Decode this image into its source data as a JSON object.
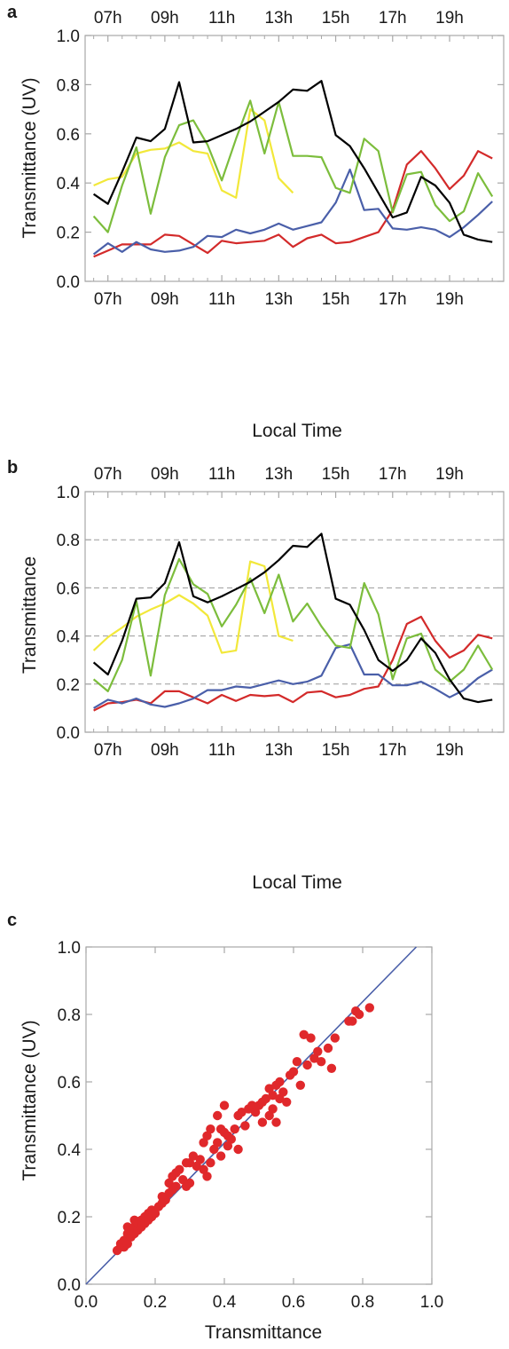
{
  "colors": {
    "black": "#000000",
    "green": "#7cbd3c",
    "yellow": "#f2e83a",
    "red": "#d32a2a",
    "blue": "#4a5fa9",
    "points": "#e0282b",
    "diagonal": "#4a5fa9",
    "grid": "#9a9a9a",
    "frame": "#a8a8a8"
  },
  "chart_data": [
    {
      "type": "line",
      "panel_label": "a",
      "xlabel": "Local Time",
      "ylabel": "Transmittance (UV)",
      "xlim": [
        6.2,
        20.9
      ],
      "ylim": [
        0,
        1.0
      ],
      "x_ticks": [
        7,
        9,
        11,
        13,
        15,
        17,
        19
      ],
      "x_tick_labels": [
        "07h",
        "09h",
        "11h",
        "13h",
        "15h",
        "17h",
        "19h"
      ],
      "y_ticks": [
        0,
        0.2,
        0.4,
        0.6,
        0.8,
        1.0
      ],
      "y_tick_labels": [
        "0.0",
        "0.2",
        "0.4",
        "0.6",
        "0.8",
        "1.0"
      ],
      "top_tick_labels": true,
      "grid": false,
      "series": [
        {
          "color": "black",
          "x": [
            6.5,
            7,
            7.5,
            8,
            8.5,
            9,
            9.5,
            10,
            10.5,
            11,
            11.5,
            12,
            12.5,
            13,
            13.5,
            14,
            14.5,
            15,
            15.5,
            16,
            16.5,
            17,
            17.5,
            18,
            18.5,
            19,
            19.5,
            20,
            20.5
          ],
          "y": [
            0.355,
            0.315,
            0.445,
            0.585,
            0.57,
            0.62,
            0.81,
            0.565,
            0.57,
            0.595,
            0.62,
            0.65,
            0.69,
            0.73,
            0.78,
            0.775,
            0.815,
            0.595,
            0.55,
            0.46,
            0.36,
            0.26,
            0.28,
            0.425,
            0.39,
            0.32,
            0.19,
            0.17,
            0.16
          ]
        },
        {
          "color": "green",
          "x": [
            6.5,
            7,
            7.5,
            8,
            8.5,
            9,
            9.5,
            10,
            10.5,
            11,
            11.5,
            12,
            12.5,
            13,
            13.5,
            14,
            14.5,
            15,
            15.5,
            16,
            16.5,
            17,
            17.5,
            18,
            18.5,
            19,
            19.5,
            20,
            20.5
          ],
          "y": [
            0.265,
            0.2,
            0.39,
            0.545,
            0.275,
            0.505,
            0.635,
            0.655,
            0.555,
            0.41,
            0.58,
            0.735,
            0.52,
            0.73,
            0.51,
            0.51,
            0.505,
            0.38,
            0.36,
            0.58,
            0.53,
            0.28,
            0.435,
            0.445,
            0.31,
            0.245,
            0.285,
            0.44,
            0.345
          ]
        },
        {
          "color": "yellow",
          "x": [
            6.5,
            7,
            7.5,
            8,
            8.5,
            9,
            9.5,
            10,
            10.5,
            11,
            11.5,
            12,
            12.5,
            13,
            13.5
          ],
          "y": [
            0.39,
            0.415,
            0.425,
            0.52,
            0.535,
            0.54,
            0.565,
            0.53,
            0.52,
            0.37,
            0.34,
            0.7,
            0.655,
            0.42,
            0.36
          ]
        },
        {
          "color": "red",
          "x": [
            6.5,
            7,
            7.5,
            8,
            8.5,
            9,
            9.5,
            10,
            10.5,
            11,
            11.5,
            12,
            12.5,
            13,
            13.5,
            14,
            14.5,
            15,
            15.5,
            16,
            16.5,
            17,
            17.5,
            18,
            18.5,
            19,
            19.5,
            20,
            20.5
          ],
          "y": [
            0.1,
            0.125,
            0.15,
            0.15,
            0.15,
            0.19,
            0.185,
            0.15,
            0.115,
            0.165,
            0.155,
            0.16,
            0.165,
            0.19,
            0.14,
            0.175,
            0.19,
            0.155,
            0.16,
            0.18,
            0.2,
            0.29,
            0.475,
            0.53,
            0.46,
            0.375,
            0.43,
            0.53,
            0.5
          ]
        },
        {
          "color": "blue",
          "x": [
            6.5,
            7,
            7.5,
            8,
            8.5,
            9,
            9.5,
            10,
            10.5,
            11,
            11.5,
            12,
            12.5,
            13,
            13.5,
            14,
            14.5,
            15,
            15.5,
            16,
            16.5,
            17,
            17.5,
            18,
            18.5,
            19,
            19.5,
            20,
            20.5
          ],
          "y": [
            0.11,
            0.155,
            0.12,
            0.16,
            0.13,
            0.12,
            0.125,
            0.14,
            0.185,
            0.18,
            0.21,
            0.195,
            0.21,
            0.235,
            0.21,
            0.225,
            0.24,
            0.32,
            0.455,
            0.29,
            0.295,
            0.215,
            0.21,
            0.22,
            0.21,
            0.18,
            0.22,
            0.27,
            0.325
          ]
        }
      ]
    },
    {
      "type": "line",
      "panel_label": "b",
      "xlabel": "Local Time",
      "ylabel": "Transmittance",
      "xlim": [
        6.2,
        20.9
      ],
      "ylim": [
        0,
        1.0
      ],
      "x_ticks": [
        7,
        9,
        11,
        13,
        15,
        17,
        19
      ],
      "x_tick_labels": [
        "07h",
        "09h",
        "11h",
        "13h",
        "15h",
        "17h",
        "19h"
      ],
      "y_ticks": [
        0,
        0.2,
        0.4,
        0.6,
        0.8,
        1.0
      ],
      "y_tick_labels": [
        "0.0",
        "0.2",
        "0.4",
        "0.6",
        "0.8",
        "1.0"
      ],
      "top_tick_labels": true,
      "grid": "dashed horizontal at 0.2, 0.4, 0.6, 0.8",
      "gridlines": [
        0.2,
        0.4,
        0.6,
        0.8
      ],
      "series": [
        {
          "color": "black",
          "x": [
            6.5,
            7,
            7.5,
            8,
            8.5,
            9,
            9.5,
            10,
            10.5,
            11,
            11.5,
            12,
            12.5,
            13,
            13.5,
            14,
            14.5,
            15,
            15.5,
            16,
            16.5,
            17,
            17.5,
            18,
            18.5,
            19,
            19.5,
            20,
            20.5
          ],
          "y": [
            0.29,
            0.24,
            0.38,
            0.555,
            0.56,
            0.62,
            0.79,
            0.565,
            0.54,
            0.565,
            0.595,
            0.625,
            0.665,
            0.715,
            0.775,
            0.77,
            0.825,
            0.555,
            0.53,
            0.425,
            0.3,
            0.255,
            0.3,
            0.39,
            0.33,
            0.22,
            0.14,
            0.125,
            0.135
          ]
        },
        {
          "color": "green",
          "x": [
            6.5,
            7,
            7.5,
            8,
            8.5,
            9,
            9.5,
            10,
            10.5,
            11,
            11.5,
            12,
            12.5,
            13,
            13.5,
            14,
            14.5,
            15,
            15.5,
            16,
            16.5,
            17,
            17.5,
            18,
            18.5,
            19,
            19.5,
            20,
            20.5
          ],
          "y": [
            0.22,
            0.17,
            0.3,
            0.545,
            0.235,
            0.57,
            0.72,
            0.615,
            0.575,
            0.44,
            0.53,
            0.64,
            0.495,
            0.655,
            0.46,
            0.535,
            0.44,
            0.36,
            0.35,
            0.62,
            0.49,
            0.22,
            0.39,
            0.41,
            0.26,
            0.21,
            0.26,
            0.36,
            0.26
          ]
        },
        {
          "color": "yellow",
          "x": [
            6.5,
            7,
            7.5,
            8,
            8.5,
            9,
            9.5,
            10,
            10.5,
            11,
            11.5,
            12,
            12.5,
            13,
            13.5
          ],
          "y": [
            0.34,
            0.395,
            0.435,
            0.48,
            0.51,
            0.535,
            0.57,
            0.535,
            0.485,
            0.33,
            0.34,
            0.71,
            0.69,
            0.4,
            0.38
          ]
        },
        {
          "color": "red",
          "x": [
            6.5,
            7,
            7.5,
            8,
            8.5,
            9,
            9.5,
            10,
            10.5,
            11,
            11.5,
            12,
            12.5,
            13,
            13.5,
            14,
            14.5,
            15,
            15.5,
            16,
            16.5,
            17,
            17.5,
            18,
            18.5,
            19,
            19.5,
            20,
            20.5
          ],
          "y": [
            0.09,
            0.12,
            0.125,
            0.135,
            0.12,
            0.17,
            0.17,
            0.145,
            0.12,
            0.155,
            0.13,
            0.155,
            0.15,
            0.155,
            0.125,
            0.165,
            0.17,
            0.145,
            0.155,
            0.18,
            0.19,
            0.3,
            0.45,
            0.48,
            0.38,
            0.31,
            0.34,
            0.405,
            0.39
          ]
        },
        {
          "color": "blue",
          "x": [
            6.5,
            7,
            7.5,
            8,
            8.5,
            9,
            9.5,
            10,
            10.5,
            11,
            11.5,
            12,
            12.5,
            13,
            13.5,
            14,
            14.5,
            15,
            15.5,
            16,
            16.5,
            17,
            17.5,
            18,
            18.5,
            19,
            19.5,
            20,
            20.5
          ],
          "y": [
            0.1,
            0.135,
            0.12,
            0.14,
            0.115,
            0.105,
            0.12,
            0.14,
            0.175,
            0.175,
            0.19,
            0.185,
            0.2,
            0.215,
            0.2,
            0.21,
            0.235,
            0.35,
            0.365,
            0.24,
            0.24,
            0.195,
            0.195,
            0.21,
            0.18,
            0.145,
            0.175,
            0.225,
            0.26
          ]
        }
      ]
    },
    {
      "type": "scatter",
      "panel_label": "c",
      "xlabel": "Transmittance",
      "ylabel": "Transmittance (UV)",
      "xlim": [
        0,
        1.0
      ],
      "ylim": [
        0,
        1.0
      ],
      "x_ticks": [
        0,
        0.2,
        0.4,
        0.6,
        0.8,
        1.0
      ],
      "x_tick_labels": [
        "0.0",
        "0.2",
        "0.4",
        "0.6",
        "0.8",
        "1.0"
      ],
      "y_ticks": [
        0,
        0.2,
        0.4,
        0.6,
        0.8,
        1.0
      ],
      "y_tick_labels": [
        "0.0",
        "0.2",
        "0.4",
        "0.6",
        "0.8",
        "1.0"
      ],
      "grid": false,
      "reference_line": {
        "x": [
          0,
          0.955
        ],
        "y": [
          0,
          1.0
        ]
      },
      "points": [
        [
          0.09,
          0.1
        ],
        [
          0.1,
          0.11
        ],
        [
          0.1,
          0.12
        ],
        [
          0.11,
          0.11
        ],
        [
          0.11,
          0.13
        ],
        [
          0.12,
          0.12
        ],
        [
          0.12,
          0.15
        ],
        [
          0.12,
          0.17
        ],
        [
          0.13,
          0.14
        ],
        [
          0.13,
          0.16
        ],
        [
          0.14,
          0.15
        ],
        [
          0.14,
          0.17
        ],
        [
          0.14,
          0.19
        ],
        [
          0.15,
          0.16
        ],
        [
          0.15,
          0.18
        ],
        [
          0.16,
          0.17
        ],
        [
          0.16,
          0.19
        ],
        [
          0.17,
          0.18
        ],
        [
          0.17,
          0.2
        ],
        [
          0.18,
          0.19
        ],
        [
          0.18,
          0.21
        ],
        [
          0.19,
          0.2
        ],
        [
          0.19,
          0.22
        ],
        [
          0.2,
          0.21
        ],
        [
          0.21,
          0.23
        ],
        [
          0.22,
          0.24
        ],
        [
          0.22,
          0.26
        ],
        [
          0.23,
          0.25
        ],
        [
          0.24,
          0.27
        ],
        [
          0.24,
          0.3
        ],
        [
          0.25,
          0.28
        ],
        [
          0.25,
          0.32
        ],
        [
          0.26,
          0.33
        ],
        [
          0.26,
          0.29
        ],
        [
          0.27,
          0.34
        ],
        [
          0.28,
          0.31
        ],
        [
          0.29,
          0.29
        ],
        [
          0.29,
          0.36
        ],
        [
          0.3,
          0.3
        ],
        [
          0.3,
          0.36
        ],
        [
          0.31,
          0.38
        ],
        [
          0.32,
          0.35
        ],
        [
          0.33,
          0.37
        ],
        [
          0.34,
          0.34
        ],
        [
          0.34,
          0.42
        ],
        [
          0.35,
          0.32
        ],
        [
          0.35,
          0.44
        ],
        [
          0.36,
          0.36
        ],
        [
          0.36,
          0.46
        ],
        [
          0.37,
          0.4
        ],
        [
          0.38,
          0.42
        ],
        [
          0.38,
          0.5
        ],
        [
          0.39,
          0.38
        ],
        [
          0.39,
          0.46
        ],
        [
          0.4,
          0.45
        ],
        [
          0.4,
          0.53
        ],
        [
          0.41,
          0.41
        ],
        [
          0.41,
          0.44
        ],
        [
          0.42,
          0.43
        ],
        [
          0.43,
          0.46
        ],
        [
          0.44,
          0.4
        ],
        [
          0.44,
          0.5
        ],
        [
          0.45,
          0.51
        ],
        [
          0.46,
          0.47
        ],
        [
          0.47,
          0.52
        ],
        [
          0.48,
          0.53
        ],
        [
          0.49,
          0.51
        ],
        [
          0.5,
          0.53
        ],
        [
          0.51,
          0.54
        ],
        [
          0.51,
          0.48
        ],
        [
          0.52,
          0.55
        ],
        [
          0.53,
          0.5
        ],
        [
          0.53,
          0.58
        ],
        [
          0.54,
          0.56
        ],
        [
          0.54,
          0.52
        ],
        [
          0.55,
          0.59
        ],
        [
          0.55,
          0.48
        ],
        [
          0.56,
          0.6
        ],
        [
          0.56,
          0.55
        ],
        [
          0.57,
          0.57
        ],
        [
          0.58,
          0.54
        ],
        [
          0.59,
          0.62
        ],
        [
          0.6,
          0.63
        ],
        [
          0.61,
          0.66
        ],
        [
          0.62,
          0.59
        ],
        [
          0.63,
          0.74
        ],
        [
          0.64,
          0.65
        ],
        [
          0.65,
          0.73
        ],
        [
          0.66,
          0.67
        ],
        [
          0.67,
          0.69
        ],
        [
          0.68,
          0.66
        ],
        [
          0.7,
          0.7
        ],
        [
          0.71,
          0.64
        ],
        [
          0.72,
          0.73
        ],
        [
          0.76,
          0.78
        ],
        [
          0.77,
          0.78
        ],
        [
          0.78,
          0.81
        ],
        [
          0.79,
          0.8
        ],
        [
          0.82,
          0.82
        ]
      ]
    }
  ]
}
